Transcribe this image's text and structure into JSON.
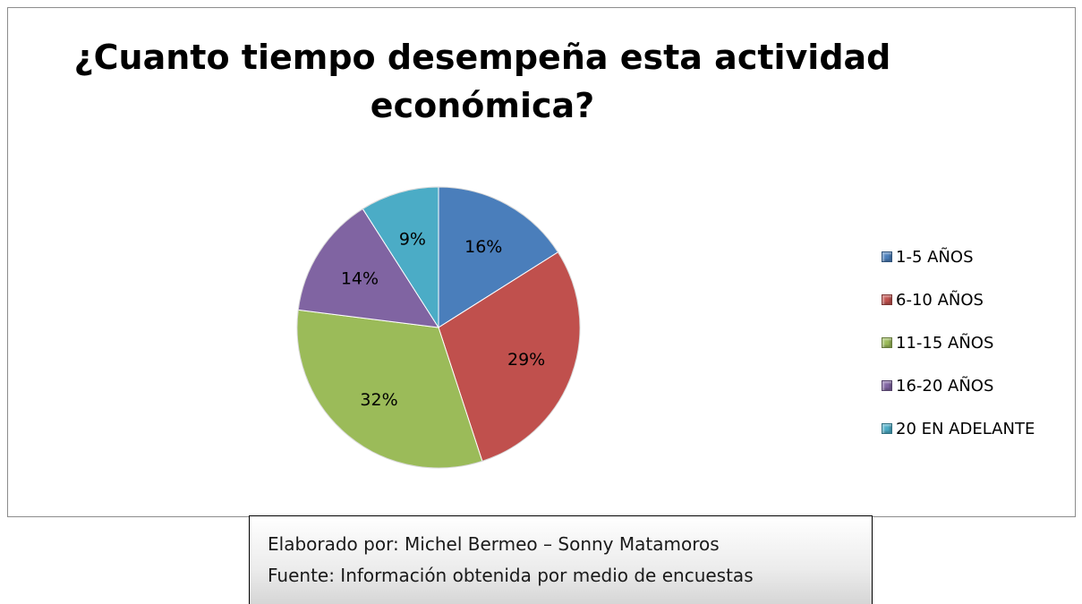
{
  "chart_data": {
    "type": "pie",
    "title": "¿Cuanto tiempo desempeña esta actividad económica?",
    "categories": [
      "1-5 AÑOS",
      "6-10 AÑOS",
      "11-15 AÑOS",
      "16-20 AÑOS",
      "20 EN ADELANTE"
    ],
    "values": [
      16,
      29,
      32,
      14,
      9
    ],
    "value_labels": [
      "16%",
      "29%",
      "32%",
      "14%",
      "9%"
    ],
    "colors": [
      "#4A7EBB",
      "#C0504D",
      "#9BBB59",
      "#8064A2",
      "#4BACC6"
    ],
    "legend_position": "right",
    "start": "top, clockwise"
  },
  "credits": {
    "line1": "Elaborado por: Michel Bermeo – Sonny Matamoros",
    "line2": "Fuente: Información obtenida por medio de encuestas"
  }
}
